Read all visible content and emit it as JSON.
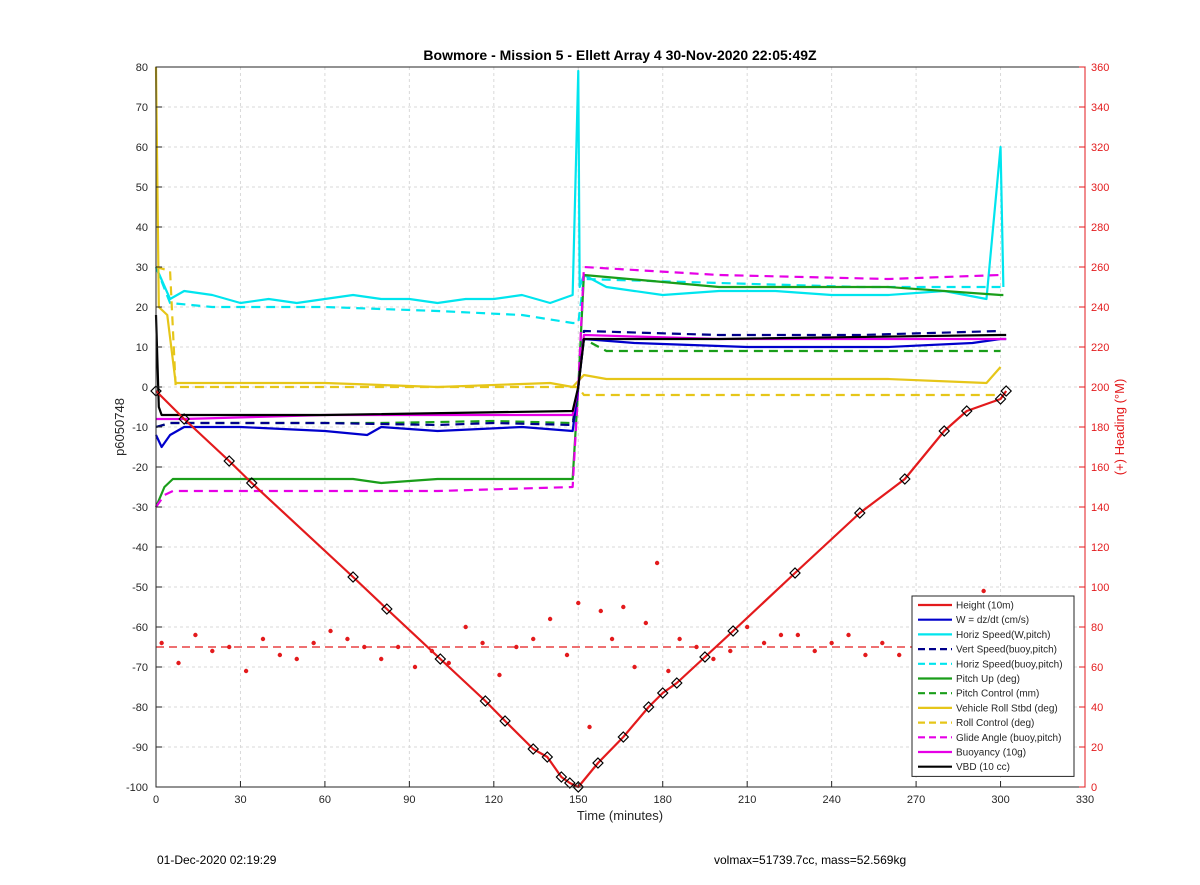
{
  "chart_data": {
    "type": "line",
    "title": "Bowmore - Mission 5 - Ellett Array 4 30-Nov-2020 22:05:49Z",
    "xlabel": "Time (minutes)",
    "ylabel": "p6050748",
    "y2label": "(+) Heading (°M)",
    "xlim": [
      0,
      330
    ],
    "ylim": [
      -100,
      80
    ],
    "y2lim": [
      0,
      360
    ],
    "xticks": [
      0,
      30,
      60,
      90,
      120,
      150,
      180,
      210,
      240,
      270,
      300,
      330
    ],
    "yticks": [
      -100,
      -90,
      -80,
      -70,
      -60,
      -50,
      -40,
      -30,
      -20,
      -10,
      0,
      10,
      20,
      30,
      40,
      50,
      60,
      70,
      80
    ],
    "y2ticks": [
      0,
      20,
      40,
      60,
      80,
      100,
      120,
      140,
      160,
      180,
      200,
      220,
      240,
      260,
      280,
      300,
      320,
      340,
      360
    ],
    "grid": true,
    "legend_position": "bottom-right",
    "series": [
      {
        "name": "Height (10m)",
        "color": "#e31a1c",
        "style": "solid-marker",
        "x": [
          0,
          10,
          26,
          34,
          70,
          82,
          101,
          117,
          124,
          134,
          139,
          144,
          147,
          150,
          157,
          166,
          175,
          180,
          185,
          195,
          205,
          227,
          250,
          266,
          280,
          288,
          300,
          302
        ],
        "y": [
          -1,
          -8,
          -18.5,
          -24,
          -47.5,
          -55.5,
          -68,
          -78.5,
          -83.5,
          -90.5,
          -92.5,
          -97.5,
          -99,
          -100,
          -94,
          -87.5,
          -80,
          -76.5,
          -74,
          -67.5,
          -61,
          -46.5,
          -31.5,
          -23,
          -11,
          -6,
          -3,
          -1
        ]
      },
      {
        "name": "W = dz/dt (cm/s)",
        "color": "#0000cc",
        "style": "solid",
        "x": [
          0,
          2,
          5,
          10,
          30,
          60,
          75,
          80,
          100,
          130,
          148,
          150,
          152,
          170,
          210,
          260,
          290,
          300,
          302
        ],
        "y": [
          -12,
          -15,
          -12,
          -10,
          -10,
          -11,
          -12,
          -10,
          -11,
          -10,
          -11,
          0,
          12,
          11,
          10,
          10,
          11,
          12,
          12
        ]
      },
      {
        "name": "Horiz Speed(W,pitch)",
        "color": "#00e5ee",
        "style": "solid",
        "x": [
          0,
          5,
          10,
          20,
          30,
          40,
          50,
          60,
          70,
          80,
          90,
          100,
          110,
          120,
          130,
          140,
          148,
          150,
          150.5,
          152,
          160,
          180,
          200,
          220,
          240,
          260,
          280,
          295,
          300,
          301
        ],
        "y": [
          30,
          22,
          24,
          23,
          21,
          22,
          21,
          22,
          23,
          22,
          22,
          21,
          22,
          22,
          23,
          21,
          23,
          79,
          25,
          28,
          25,
          23,
          24,
          24,
          23,
          23,
          24,
          22,
          60,
          25
        ]
      },
      {
        "name": "Vert Speed(buoy,pitch)",
        "color": "#00008b",
        "style": "dashed",
        "x": [
          0,
          5,
          20,
          60,
          100,
          120,
          148,
          150,
          152,
          200,
          250,
          300
        ],
        "y": [
          -10,
          -9,
          -9,
          -9,
          -9.5,
          -9,
          -9.5,
          0,
          14,
          13,
          13,
          14
        ]
      },
      {
        "name": "Horiz Speed(buoy,pitch)",
        "color": "#00e5ee",
        "style": "dashed",
        "x": [
          0,
          5,
          20,
          60,
          100,
          130,
          148,
          150,
          152,
          200,
          250,
          300
        ],
        "y": [
          30,
          21,
          20,
          20,
          19,
          18,
          16,
          16,
          27,
          26,
          25,
          25
        ]
      },
      {
        "name": "Pitch Up (deg)",
        "color": "#1a9e1a",
        "style": "solid",
        "x": [
          0,
          3,
          6,
          20,
          50,
          70,
          80,
          100,
          148,
          150,
          152,
          200,
          260,
          300,
          301
        ],
        "y": [
          -30,
          -25,
          -23,
          -23,
          -23,
          -23,
          -24,
          -23,
          -23,
          0,
          28,
          25,
          25,
          23,
          23
        ]
      },
      {
        "name": "Pitch Control (mm)",
        "color": "#1a9e1a",
        "style": "dashed",
        "x": [
          0,
          5,
          30,
          80,
          120,
          148,
          150,
          152,
          160,
          200,
          260,
          300
        ],
        "y": [
          -10,
          -9,
          -9,
          -9,
          -8.5,
          -9,
          0,
          12,
          9,
          9,
          9,
          9
        ]
      },
      {
        "name": "Vehicle Roll Stbd (deg)",
        "color": "#e6c619",
        "style": "solid",
        "x": [
          0,
          1,
          4,
          7,
          20,
          60,
          100,
          140,
          148,
          152,
          160,
          200,
          260,
          295,
          300
        ],
        "y": [
          80,
          20,
          18,
          1,
          1,
          1,
          0,
          1,
          0,
          3,
          2,
          2,
          2,
          1,
          5
        ]
      },
      {
        "name": "Roll Control (deg)",
        "color": "#e6c619",
        "style": "dashed",
        "x": [
          0,
          5,
          7,
          20,
          60,
          100,
          148,
          150,
          152,
          160,
          200,
          260,
          300
        ],
        "y": [
          30,
          29,
          0,
          0,
          0,
          0,
          0,
          0,
          -2,
          -2,
          -2,
          -2,
          -2
        ]
      },
      {
        "name": "Glide Angle (buoy,pitch)",
        "color": "#e600e6",
        "style": "dashed",
        "x": [
          0,
          3,
          6,
          20,
          60,
          100,
          148,
          150,
          152,
          200,
          260,
          300
        ],
        "y": [
          -30,
          -27,
          -26,
          -26,
          -26,
          -26,
          -25,
          0,
          30,
          28,
          27,
          28
        ]
      },
      {
        "name": "Buoyancy (10g)",
        "color": "#e600e6",
        "style": "solid",
        "x": [
          0,
          3,
          10,
          60,
          148,
          150,
          152,
          200,
          300,
          302
        ],
        "y": [
          -8,
          -8,
          -8,
          -7,
          -7,
          0,
          13,
          12,
          12,
          12
        ]
      },
      {
        "name": "VBD (10 cc)",
        "color": "#000000",
        "style": "solid",
        "x": [
          0,
          1,
          2,
          5,
          60,
          148,
          150,
          152,
          200,
          300,
          302
        ],
        "y": [
          18,
          -5,
          -7,
          -7,
          -7,
          -6,
          0,
          12,
          12,
          13,
          13
        ]
      }
    ],
    "heading_series": {
      "color": "#e31a1c",
      "style": "dots",
      "mean_heading": 70,
      "x": [
        2,
        8,
        14,
        20,
        26,
        32,
        38,
        44,
        50,
        56,
        62,
        68,
        74,
        80,
        86,
        92,
        98,
        104,
        110,
        116,
        122,
        128,
        134,
        140,
        146,
        150,
        154,
        158,
        162,
        166,
        170,
        174,
        178,
        182,
        186,
        192,
        198,
        204,
        210,
        216,
        222,
        228,
        234,
        240,
        246,
        252,
        258,
        264,
        270,
        276,
        282,
        288,
        294
      ],
      "y": [
        72,
        62,
        76,
        68,
        70,
        58,
        74,
        66,
        64,
        72,
        78,
        74,
        70,
        64,
        70,
        60,
        68,
        62,
        80,
        72,
        56,
        70,
        74,
        84,
        66,
        92,
        30,
        88,
        74,
        90,
        60,
        82,
        112,
        58,
        74,
        70,
        64,
        68,
        80,
        72,
        76,
        76,
        68,
        72,
        76,
        66,
        72,
        66,
        70,
        74,
        68,
        62,
        98
      ]
    }
  },
  "footer": {
    "timestamp": "01-Dec-2020 02:19:29",
    "params": "volmax=51739.7cc, mass=52.569kg"
  }
}
